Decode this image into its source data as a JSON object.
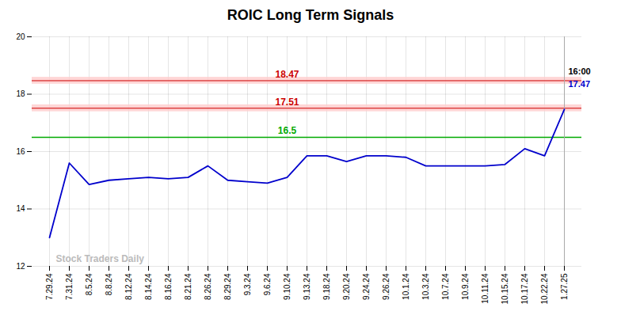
{
  "chart_data": {
    "type": "line",
    "title": "ROIC Long Term Signals",
    "categories": [
      "7.29.24",
      "7.31.24",
      "8.5.24",
      "8.8.24",
      "8.12.24",
      "8.14.24",
      "8.16.24",
      "8.21.24",
      "8.26.24",
      "8.29.24",
      "9.3.24",
      "9.6.24",
      "9.10.24",
      "9.13.24",
      "9.18.24",
      "9.20.24",
      "9.24.24",
      "9.26.24",
      "10.1.24",
      "10.3.24",
      "10.7.24",
      "10.9.24",
      "10.11.24",
      "10.15.24",
      "10.17.24",
      "10.22.24",
      "1.27.25"
    ],
    "values": [
      13.0,
      15.6,
      14.85,
      15.0,
      15.05,
      15.1,
      15.05,
      15.1,
      15.5,
      15.0,
      14.95,
      14.9,
      15.1,
      15.85,
      15.85,
      15.65,
      15.85,
      15.85,
      15.8,
      15.5,
      15.5,
      15.5,
      15.5,
      15.55,
      16.1,
      15.85,
      17.47
    ],
    "color": "#0000cc",
    "ylim": [
      12,
      20
    ],
    "yticks": [
      12,
      14,
      16,
      18,
      20
    ],
    "grid": true,
    "hlines": [
      {
        "value": 16.5,
        "label": "16.5",
        "color": "#00aa00",
        "type": "line"
      },
      {
        "value": 17.51,
        "label": "17.51",
        "color": "#cc0000",
        "type": "band"
      },
      {
        "value": 18.47,
        "label": "18.47",
        "color": "#cc0000",
        "type": "band"
      }
    ],
    "vline": {
      "x": "1.27.25",
      "color": "#aaaaaa"
    },
    "annotations": [
      {
        "text": "16:00",
        "color": "black"
      },
      {
        "text": "17.47",
        "color": "#0000cc"
      }
    ],
    "watermark": "Stock Traders Daily"
  }
}
